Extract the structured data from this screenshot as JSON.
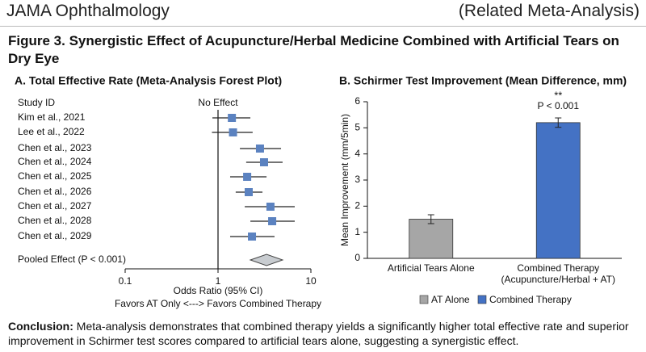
{
  "header": {
    "journal": "JAMA Ophthalmology",
    "tag": "(Related Meta-Analysis)",
    "figure_title": "Figure 3. Synergistic Effect of Acupuncture/Herbal Medicine Combined with Artificial Tears on Dry Eye"
  },
  "chart_data": [
    {
      "type": "forest",
      "title": "A. Total Effective Rate (Meta-Analysis Forest Plot)",
      "column_label": "Study ID",
      "reference_label": "No Effect",
      "reference": 1,
      "studies": [
        {
          "name": "Kim et al., 2021",
          "or": 1.41,
          "lower": 0.87,
          "upper": 2.23
        },
        {
          "name": "Lee et al., 2022",
          "or": 1.45,
          "lower": 0.86,
          "upper": 2.36
        },
        {
          "name": "Chen et al., 2023",
          "or": 2.83,
          "lower": 1.72,
          "upper": 4.77
        },
        {
          "name": "Chen et al., 2024",
          "or": 3.13,
          "lower": 2.01,
          "upper": 4.96
        },
        {
          "name": "Chen et al., 2025",
          "or": 2.06,
          "lower": 1.35,
          "upper": 3.33
        },
        {
          "name": "Chen et al., 2026",
          "or": 2.14,
          "lower": 1.55,
          "upper": 3.01
        },
        {
          "name": "Chen et al., 2027",
          "or": 3.67,
          "lower": 1.94,
          "upper": 6.7
        },
        {
          "name": "Chen et al., 2028",
          "or": 3.83,
          "lower": 2.23,
          "upper": 6.7
        },
        {
          "name": "Chen et al., 2029",
          "or": 2.32,
          "lower": 1.35,
          "upper": 4.06
        }
      ],
      "pooled": {
        "name": "Pooled Effect (P < 0.001)",
        "or": 3.33,
        "lower": 2.23,
        "upper": 4.96
      },
      "color": "#5b82c0",
      "pooled_color": "#c8ccd0",
      "xlim": [
        0.1,
        10
      ],
      "xticks": [
        0.1,
        1,
        10
      ],
      "xscale": "log",
      "xlabel": "Odds Ratio (95% CI)",
      "subtitle": "Favors AT Only <---> Favors Combined Therapy"
    },
    {
      "type": "bar",
      "title": "B. Schirmer Test Improvement (Mean Difference, mm)",
      "categories": [
        [
          "Artificial Tears Alone"
        ],
        [
          "Combined Therapy",
          "(Acupuncture/Herbal + AT)"
        ]
      ],
      "values": [
        1.5,
        5.2
      ],
      "errors": [
        0.17,
        0.18
      ],
      "colors": [
        "#a6a6a6",
        "#4472c4"
      ],
      "legend": [
        "AT Alone",
        "Combined Therapy"
      ],
      "ylim": [
        0,
        6
      ],
      "yticks": [
        0,
        1,
        2,
        3,
        4,
        5,
        6
      ],
      "ylabel": "Mean Improvement (mm/5min)",
      "annotation": {
        "stars": "**",
        "text": "P < 0.001"
      }
    }
  ],
  "conclusion": {
    "label": "Conclusion:",
    "text": "Meta-analysis demonstrates that combined therapy yields a significantly higher total effective rate and superior improvement in Schirmer test scores compared to artificial tears alone, suggesting a synergistic effect."
  }
}
